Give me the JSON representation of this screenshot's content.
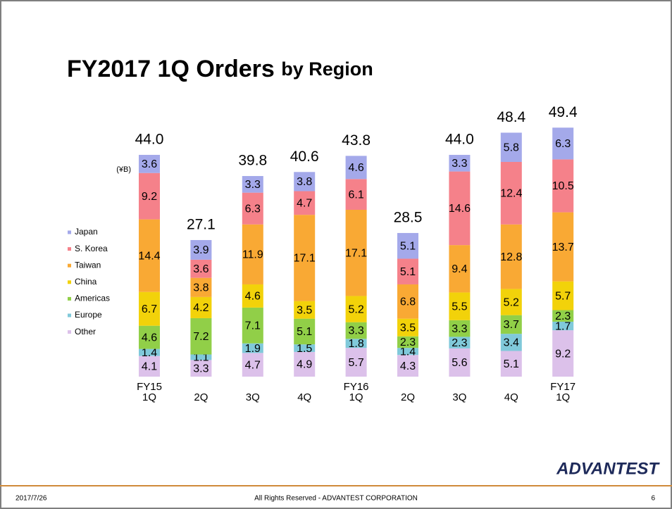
{
  "chart_data": {
    "type": "stacked-bar",
    "title": [
      "FY2017 1Q Orders",
      "by Region"
    ],
    "unit_label": "(¥B)",
    "categories": [
      [
        "FY15",
        "1Q"
      ],
      [
        "2Q"
      ],
      [
        "3Q"
      ],
      [
        "4Q"
      ],
      [
        "FY16",
        "1Q"
      ],
      [
        "2Q"
      ],
      [
        "3Q"
      ],
      [
        "4Q"
      ],
      [
        "FY17",
        "1Q"
      ]
    ],
    "series": [
      {
        "name": "Japan",
        "color": "#a4a9ea",
        "values": [
          3.6,
          3.9,
          3.3,
          3.8,
          4.6,
          5.1,
          3.3,
          5.8,
          6.3
        ]
      },
      {
        "name": "S. Korea",
        "color": "#f5818a",
        "values": [
          9.2,
          3.6,
          6.3,
          4.7,
          6.1,
          5.1,
          14.6,
          12.4,
          10.5
        ]
      },
      {
        "name": "Taiwan",
        "color": "#f9a934",
        "values": [
          14.4,
          3.8,
          11.9,
          17.1,
          17.1,
          6.8,
          9.4,
          12.8,
          13.7
        ]
      },
      {
        "name": "China",
        "color": "#f2d20a",
        "values": [
          6.7,
          4.2,
          4.6,
          3.5,
          5.2,
          3.5,
          5.5,
          5.2,
          5.7
        ]
      },
      {
        "name": "Americas",
        "color": "#91cf48",
        "values": [
          4.6,
          7.2,
          7.1,
          5.1,
          3.3,
          2.3,
          3.3,
          3.7,
          2.3
        ]
      },
      {
        "name": "Europe",
        "color": "#80c9da",
        "values": [
          1.4,
          1.1,
          1.9,
          1.5,
          1.8,
          1.4,
          2.3,
          3.4,
          1.7
        ]
      },
      {
        "name": "Other",
        "color": "#dcc1ea",
        "values": [
          4.1,
          3.3,
          4.7,
          4.9,
          5.7,
          4.3,
          5.6,
          5.1,
          9.2
        ]
      }
    ],
    "totals": [
      44.0,
      27.1,
      39.8,
      40.6,
      43.8,
      28.5,
      44.0,
      48.4,
      49.4
    ],
    "total_labels": [
      "44.0",
      "27.1",
      "39.8",
      "40.6",
      "43.8",
      "28.5",
      "44.0",
      "48.4",
      "49.4"
    ]
  },
  "logo": "ADVANTEST",
  "footer": {
    "date": "2017/7/26",
    "copyright": "All Rights Reserved - ADVANTEST CORPORATION",
    "page": "6"
  }
}
